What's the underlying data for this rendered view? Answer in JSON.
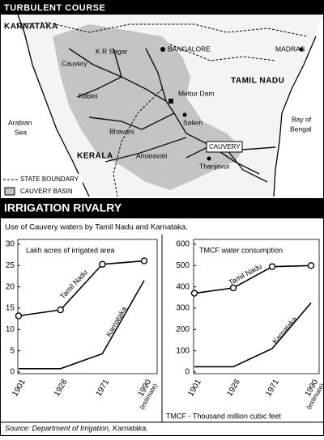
{
  "map": {
    "title": "TURBULENT COURSE",
    "labels": [
      "KARNATAKA",
      "K R Sagar",
      "Cauvery",
      "BANGALORE",
      "MADRAS",
      "TAMIL NADU",
      "Kabini",
      "Mettur Dam",
      "Salem",
      "Bhavani",
      "Arabian",
      "Sea",
      "Bay of",
      "Bengal",
      "KERALA",
      "Amaravati",
      "CAUVERY",
      "Thanjavur"
    ],
    "legend": [
      "STATE BOUNDARY",
      "CAUVERY BASIN"
    ]
  },
  "section_title": "IRRIGATION RIVALRY",
  "subtitle": "Use of Cauvery waters by Tamil Nadu and Karnataka.",
  "chart_data": [
    {
      "type": "line",
      "title": "Lakh acres of irrigated area",
      "categories": [
        "1901",
        "1928",
        "1971",
        "1990 (estimate)"
      ],
      "series": [
        {
          "name": "Tamil Nadu",
          "color": "#000000",
          "values": [
            13.2,
            14.6,
            25.3,
            26.1
          ],
          "markers": true
        },
        {
          "name": "Karnataka",
          "color": "#000000",
          "values": [
            0.8,
            0.8,
            4.3,
            21.5
          ],
          "markers": false
        }
      ],
      "ylim": [
        0,
        30
      ],
      "yticks": [
        0,
        5,
        10,
        15,
        20,
        25,
        30
      ]
    },
    {
      "type": "line",
      "title": "TMCF water consumption",
      "categories": [
        "1901",
        "1928",
        "1971",
        "1990 (estimate)"
      ],
      "series": [
        {
          "name": "Tamil Nadu",
          "color": "#000000",
          "values": [
            370,
            395,
            495,
            500
          ],
          "markers": true
        },
        {
          "name": "Karnataka",
          "color": "#000000",
          "values": [
            25,
            25,
            110,
            325
          ],
          "markers": false
        }
      ],
      "ylim": [
        0,
        600
      ],
      "yticks": [
        0,
        100,
        200,
        300,
        400,
        500,
        600
      ],
      "note": "TMCF - Thousand million cubic feet"
    }
  ],
  "source": "Source: Department of Irrigation, Karnataka."
}
